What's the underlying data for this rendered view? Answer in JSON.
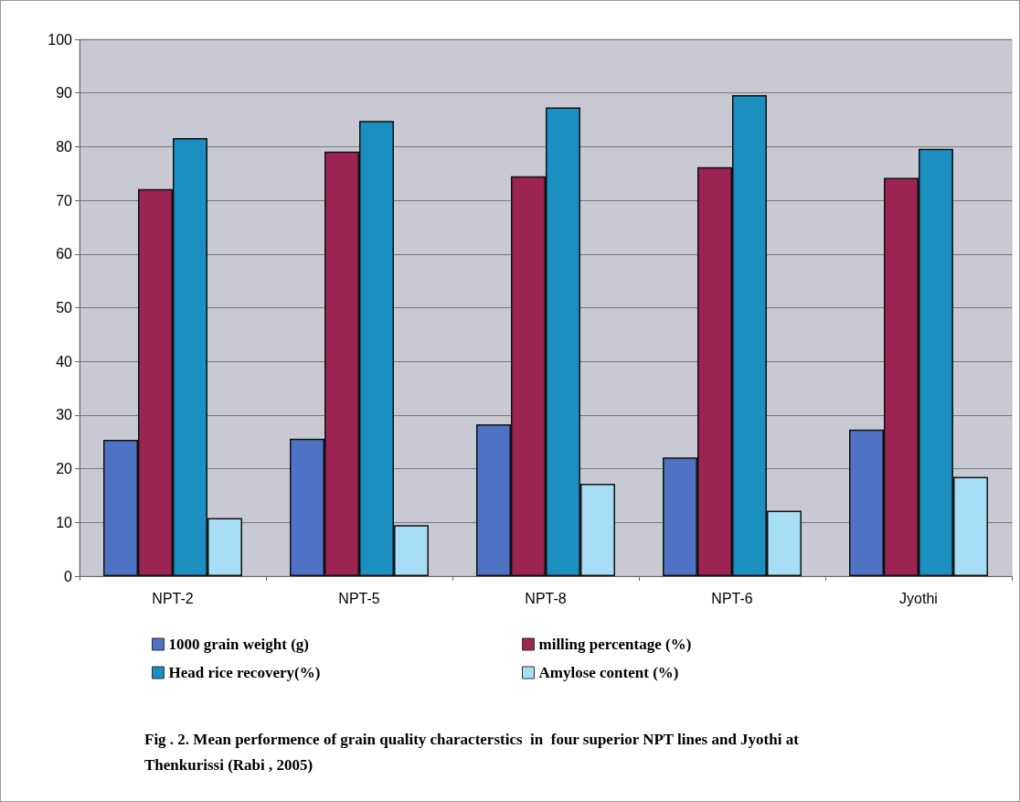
{
  "chart_data": {
    "type": "bar",
    "title": "Fig . 2. Mean performence of grain quality characterstics  in  four superior NPT lines and Jyothi at Thenkurissi (Rabi , 2005)",
    "categories": [
      "NPT-2",
      "NPT-5",
      "NPT-8",
      "NPT-6",
      "Jyothi"
    ],
    "series": [
      {
        "name": "1000 grain weight (g)",
        "color": "#4f72c4",
        "values": [
          25.4,
          25.6,
          28.3,
          22.1,
          27.3
        ]
      },
      {
        "name": "milling percentage (%)",
        "color": "#9b2452",
        "values": [
          72.1,
          79.1,
          74.5,
          76.2,
          74.2
        ]
      },
      {
        "name": "Head rice recovery(%)",
        "color": "#1a8fc0",
        "values": [
          81.6,
          84.8,
          87.3,
          89.6,
          79.6
        ]
      },
      {
        "name": "Amylose content (%)",
        "color": "#a8def5",
        "values": [
          10.8,
          9.5,
          17.2,
          12.2,
          18.5
        ]
      }
    ],
    "ylim": [
      0,
      100
    ],
    "yticks": [
      0,
      10,
      20,
      30,
      40,
      50,
      60,
      70,
      80,
      90,
      100
    ],
    "grid": "y",
    "legend": "bottom"
  }
}
